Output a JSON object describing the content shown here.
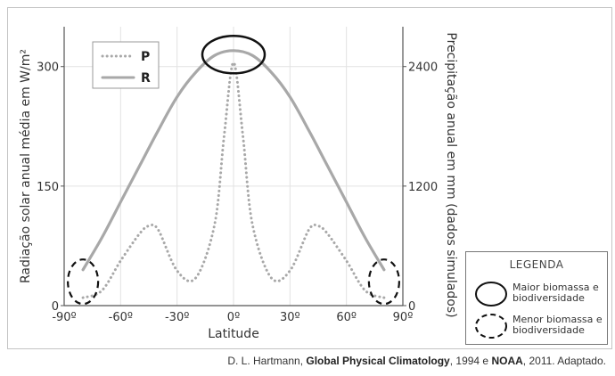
{
  "chart_data": {
    "type": "line",
    "xlabel": "Latitude",
    "ylabel_left": "Radiação solar anual média em W/m²",
    "ylabel_right": "Precipitação anual em mm (dados simulados)",
    "x_ticks": [
      "-90º",
      "-60º",
      "-30º",
      "0º",
      "30º",
      "60º",
      "90º"
    ],
    "x_tick_values": [
      -90,
      -60,
      -30,
      0,
      30,
      60,
      90
    ],
    "xlim": [
      -90,
      90
    ],
    "left_ticks": [
      0,
      150,
      300
    ],
    "ylim_left": [
      0,
      350
    ],
    "right_ticks": [
      0,
      1200,
      2400
    ],
    "ylim_right": [
      0,
      2800
    ],
    "grid": true,
    "legend_position": "top-left",
    "series": [
      {
        "name": "P",
        "style": "dotted",
        "axis": "right",
        "x": [
          -80,
          -70,
          -60,
          -50,
          -45,
          -40,
          -30,
          -20,
          -10,
          -5,
          0,
          5,
          10,
          20,
          30,
          40,
          45,
          50,
          60,
          70,
          80
        ],
        "values": [
          80,
          150,
          450,
          720,
          800,
          760,
          350,
          280,
          820,
          1700,
          2440,
          1700,
          820,
          280,
          350,
          760,
          800,
          720,
          450,
          150,
          80
        ]
      },
      {
        "name": "R",
        "style": "solid",
        "axis": "left",
        "x": [
          -80,
          -70,
          -60,
          -50,
          -40,
          -30,
          -20,
          -10,
          0,
          10,
          20,
          30,
          40,
          50,
          60,
          70,
          80
        ],
        "values": [
          45,
          85,
          130,
          175,
          220,
          262,
          293,
          314,
          320,
          314,
          293,
          262,
          220,
          175,
          130,
          85,
          45
        ]
      }
    ],
    "annotations": [
      {
        "shape": "solid-ellipse",
        "x": 0,
        "y_left": 315
      },
      {
        "shape": "dashed-ellipse",
        "x": -80,
        "y_left": 30
      },
      {
        "shape": "dashed-ellipse",
        "x": 80,
        "y_left": 30
      }
    ]
  },
  "legend": {
    "title": "LEGENDA",
    "items": [
      {
        "label": "Maior biomassa e biodiversidade"
      },
      {
        "label": "Menor biomassa e biodiversidade"
      }
    ]
  },
  "credit": {
    "author": "D. L. Hartmann, ",
    "book": "Global Physical Climatology",
    "mid": ", 1994 e ",
    "org": "NOAA",
    "tail": ", 2011. Adaptado."
  },
  "colors": {
    "series": "#a8a8a8",
    "axes": "#555555",
    "grid": "#e2e2e2"
  }
}
